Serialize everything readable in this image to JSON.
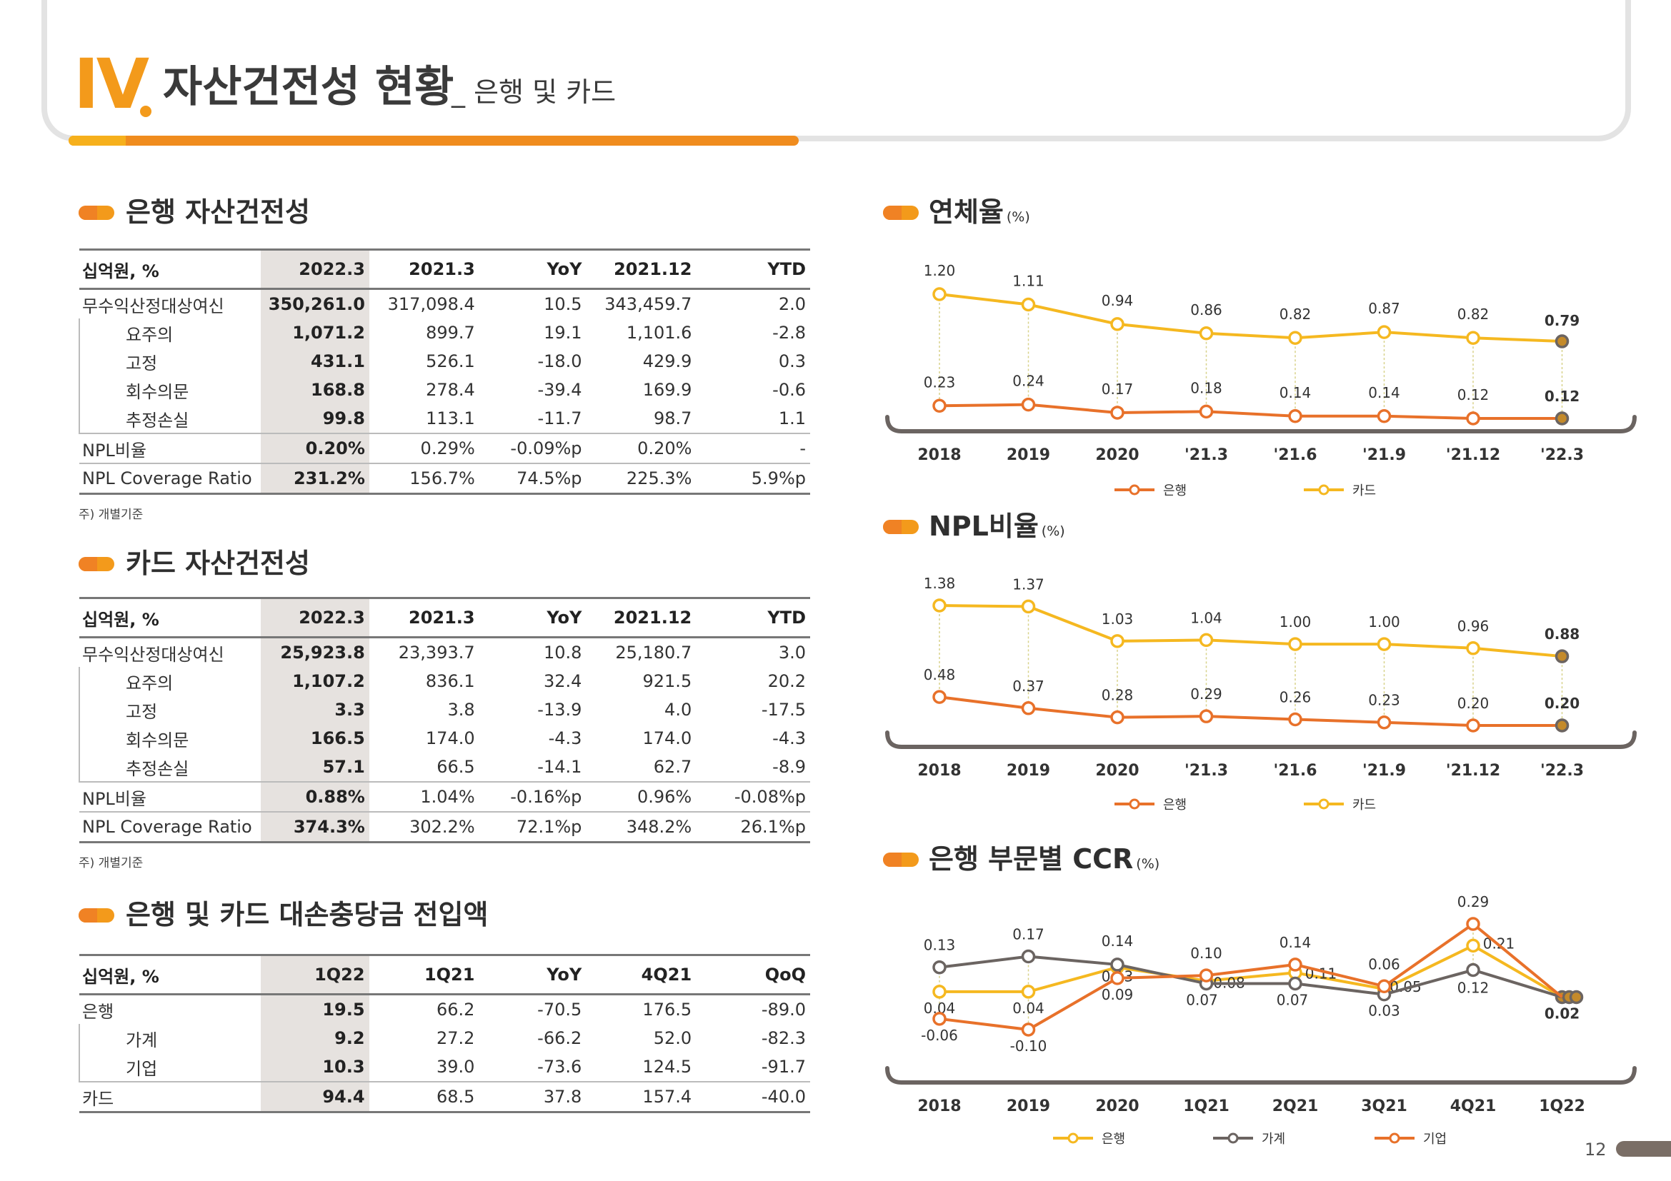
{
  "header": {
    "roman": "IV",
    "title": "자산건전성 현황",
    "subtitle": "_ 은행 및 카드"
  },
  "bank_table": {
    "title": "은행 자산건전성",
    "note": "주) 개별기준",
    "columns": [
      "십억원, %",
      "2022.3",
      "2021.3",
      "YoY",
      "2021.12",
      "YTD"
    ],
    "rows": [
      {
        "label": "무수익산정대상여신",
        "values": [
          "350,261.0",
          "317,098.4",
          "10.5",
          "343,459.7",
          "2.0"
        ]
      },
      {
        "label": "요주의",
        "values": [
          "1,071.2",
          "899.7",
          "19.1",
          "1,101.6",
          "-2.8"
        ]
      },
      {
        "label": "고정",
        "values": [
          "431.1",
          "526.1",
          "-18.0",
          "429.9",
          "0.3"
        ]
      },
      {
        "label": "회수의문",
        "values": [
          "168.8",
          "278.4",
          "-39.4",
          "169.9",
          "-0.6"
        ]
      },
      {
        "label": "추정손실",
        "values": [
          "99.8",
          "113.1",
          "-11.7",
          "98.7",
          "1.1"
        ]
      },
      {
        "label": "NPL비율",
        "values": [
          "0.20%",
          "0.29%",
          "-0.09%p",
          "0.20%",
          "-"
        ]
      },
      {
        "label": "NPL Coverage Ratio",
        "values": [
          "231.2%",
          "156.7%",
          "74.5%p",
          "225.3%",
          "5.9%p"
        ]
      }
    ]
  },
  "card_table": {
    "title": "카드 자산건전성",
    "note": "주) 개별기준",
    "columns": [
      "십억원, %",
      "2022.3",
      "2021.3",
      "YoY",
      "2021.12",
      "YTD"
    ],
    "rows": [
      {
        "label": "무수익산정대상여신",
        "values": [
          "25,923.8",
          "23,393.7",
          "10.8",
          "25,180.7",
          "3.0"
        ]
      },
      {
        "label": "요주의",
        "values": [
          "1,107.2",
          "836.1",
          "32.4",
          "921.5",
          "20.2"
        ]
      },
      {
        "label": "고정",
        "values": [
          "3.3",
          "3.8",
          "-13.9",
          "4.0",
          "-17.5"
        ]
      },
      {
        "label": "회수의문",
        "values": [
          "166.5",
          "174.0",
          "-4.3",
          "174.0",
          "-4.3"
        ]
      },
      {
        "label": "추정손실",
        "values": [
          "57.1",
          "66.5",
          "-14.1",
          "62.7",
          "-8.9"
        ]
      },
      {
        "label": "NPL비율",
        "values": [
          "0.88%",
          "1.04%",
          "-0.16%p",
          "0.96%",
          "-0.08%p"
        ]
      },
      {
        "label": "NPL Coverage Ratio",
        "values": [
          "374.3%",
          "302.2%",
          "72.1%p",
          "348.2%",
          "26.1%p"
        ]
      }
    ]
  },
  "provision_table": {
    "title": "은행 및 카드 대손충당금 전입액",
    "columns": [
      "십억원, %",
      "1Q22",
      "1Q21",
      "YoY",
      "4Q21",
      "QoQ"
    ],
    "rows": [
      {
        "label": "은행",
        "values": [
          "19.5",
          "66.2",
          "-70.5",
          "176.5",
          "-89.0"
        ]
      },
      {
        "label": "가계",
        "values": [
          "9.2",
          "27.2",
          "-66.2",
          "52.0",
          "-82.3"
        ]
      },
      {
        "label": "기업",
        "values": [
          "10.3",
          "39.0",
          "-73.6",
          "124.5",
          "-91.7"
        ]
      },
      {
        "label": "카드",
        "values": [
          "94.4",
          "68.5",
          "37.8",
          "157.4",
          "-40.0"
        ]
      }
    ]
  },
  "colors": {
    "bank": "#e8712a",
    "card": "#f5b820",
    "household": "#6b6461",
    "highlight": "#e6e2df",
    "accent": "#f39a1b"
  },
  "page_number": "12",
  "chart_data": [
    {
      "type": "line",
      "title": "연체율",
      "unit": "(%)",
      "categories": [
        "2018",
        "2019",
        "2020",
        "'21.3",
        "'21.6",
        "'21.9",
        "'21.12",
        "'22.3"
      ],
      "series": [
        {
          "name": "은행",
          "values": [
            0.23,
            0.24,
            0.17,
            0.18,
            0.14,
            0.14,
            0.12,
            0.12
          ],
          "labels": [
            "0.23",
            "0.24",
            "0.17",
            "0.18",
            "0.14",
            "0.14",
            "0.12",
            "0.12"
          ]
        },
        {
          "name": "카드",
          "values": [
            1.2,
            1.11,
            0.94,
            0.86,
            0.82,
            0.87,
            0.82,
            0.79
          ],
          "labels": [
            "1.20",
            "1.11",
            "0.94",
            "0.86",
            "0.82",
            "0.87",
            "0.82",
            "0.79"
          ]
        }
      ],
      "legend": "bottom"
    },
    {
      "type": "line",
      "title": "NPL비율",
      "unit": "(%)",
      "categories": [
        "2018",
        "2019",
        "2020",
        "'21.3",
        "'21.6",
        "'21.9",
        "'21.12",
        "'22.3"
      ],
      "series": [
        {
          "name": "은행",
          "values": [
            0.48,
            0.37,
            0.28,
            0.29,
            0.26,
            0.23,
            0.2,
            0.2
          ],
          "labels": [
            "0.48",
            "0.37",
            "0.28",
            "0.29",
            "0.26",
            "0.23",
            "0.20",
            "0.20"
          ]
        },
        {
          "name": "카드",
          "values": [
            1.38,
            1.37,
            1.03,
            1.04,
            1.0,
            1.0,
            0.96,
            0.88
          ],
          "labels": [
            "1.38",
            "1.37",
            "1.03",
            "1.04",
            "1.00",
            "1.00",
            "0.96",
            "0.88"
          ]
        }
      ],
      "legend": "bottom"
    },
    {
      "type": "line",
      "title": "은행 부문별 CCR",
      "unit": "(%)",
      "categories": [
        "2018",
        "2019",
        "2020",
        "1Q21",
        "2Q21",
        "3Q21",
        "4Q21",
        "1Q22"
      ],
      "series": [
        {
          "name": "은행",
          "values": [
            0.04,
            0.04,
            0.13,
            0.08,
            0.11,
            0.05,
            0.21,
            0.02
          ],
          "labels": [
            "0.04",
            "0.04",
            "0.13",
            "0.08",
            "0.11",
            "0.05",
            "0.21",
            ""
          ]
        },
        {
          "name": "가계",
          "values": [
            0.13,
            0.17,
            0.14,
            0.07,
            0.07,
            0.03,
            0.12,
            0.02
          ],
          "labels": [
            "0.13",
            "0.17",
            "0.14",
            "0.07",
            "0.07",
            "0.03",
            "0.12",
            "0.02"
          ]
        },
        {
          "name": "기업",
          "values": [
            -0.06,
            -0.1,
            0.09,
            0.1,
            0.14,
            0.06,
            0.29,
            0.02
          ],
          "labels": [
            "-0.06",
            "-0.10",
            "0.09",
            "0.10",
            "0.14",
            "0.06",
            "0.29",
            ""
          ]
        }
      ],
      "legend": "bottom"
    }
  ]
}
